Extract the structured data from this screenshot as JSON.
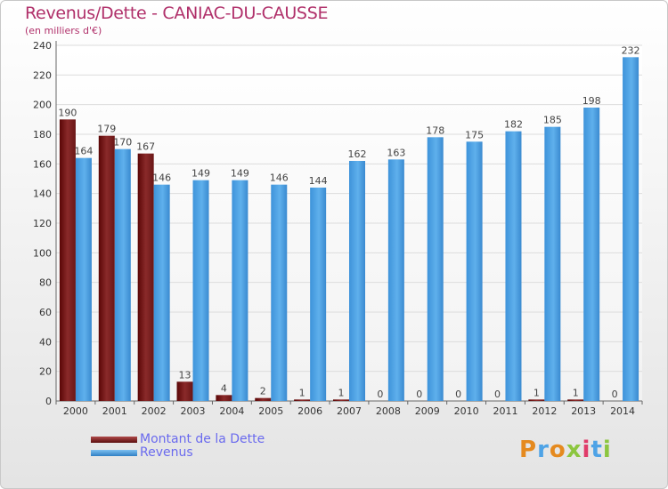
{
  "chart_data": {
    "type": "bar",
    "title": "Revenus/Dette - CANIAC-DU-CAUSSE",
    "subtitle": "(en milliers d'€)",
    "categories": [
      "2000",
      "2001",
      "2002",
      "2003",
      "2004",
      "2005",
      "2006",
      "2007",
      "2008",
      "2009",
      "2010",
      "2011",
      "2012",
      "2013",
      "2014"
    ],
    "series": [
      {
        "name": "Montant de la Dette",
        "color": "#7a1e1e",
        "values": [
          190,
          179,
          167,
          13,
          4,
          2,
          1,
          1,
          0,
          0,
          0,
          0,
          1,
          1,
          0
        ]
      },
      {
        "name": "Revenus",
        "color": "#4ea3e6",
        "values": [
          164,
          170,
          146,
          149,
          149,
          146,
          144,
          162,
          163,
          178,
          175,
          182,
          185,
          198,
          232
        ]
      }
    ],
    "ylim": [
      0,
      240
    ],
    "yticks": [
      0,
      20,
      40,
      60,
      80,
      100,
      120,
      140,
      160,
      180,
      200,
      220,
      240
    ],
    "grid": true,
    "legend": "bottom-left"
  },
  "legend": {
    "debt_label": "Montant de la Dette",
    "revenue_label": "Revenus"
  },
  "logo": {
    "letters": [
      "P",
      "r",
      "o",
      "x",
      "i",
      "t",
      "i"
    ],
    "colors": [
      "#e58a1f",
      "#4ea3e6",
      "#e58a1f",
      "#8cc63f",
      "#e03c6a",
      "#4ea3e6",
      "#8cc63f"
    ]
  }
}
